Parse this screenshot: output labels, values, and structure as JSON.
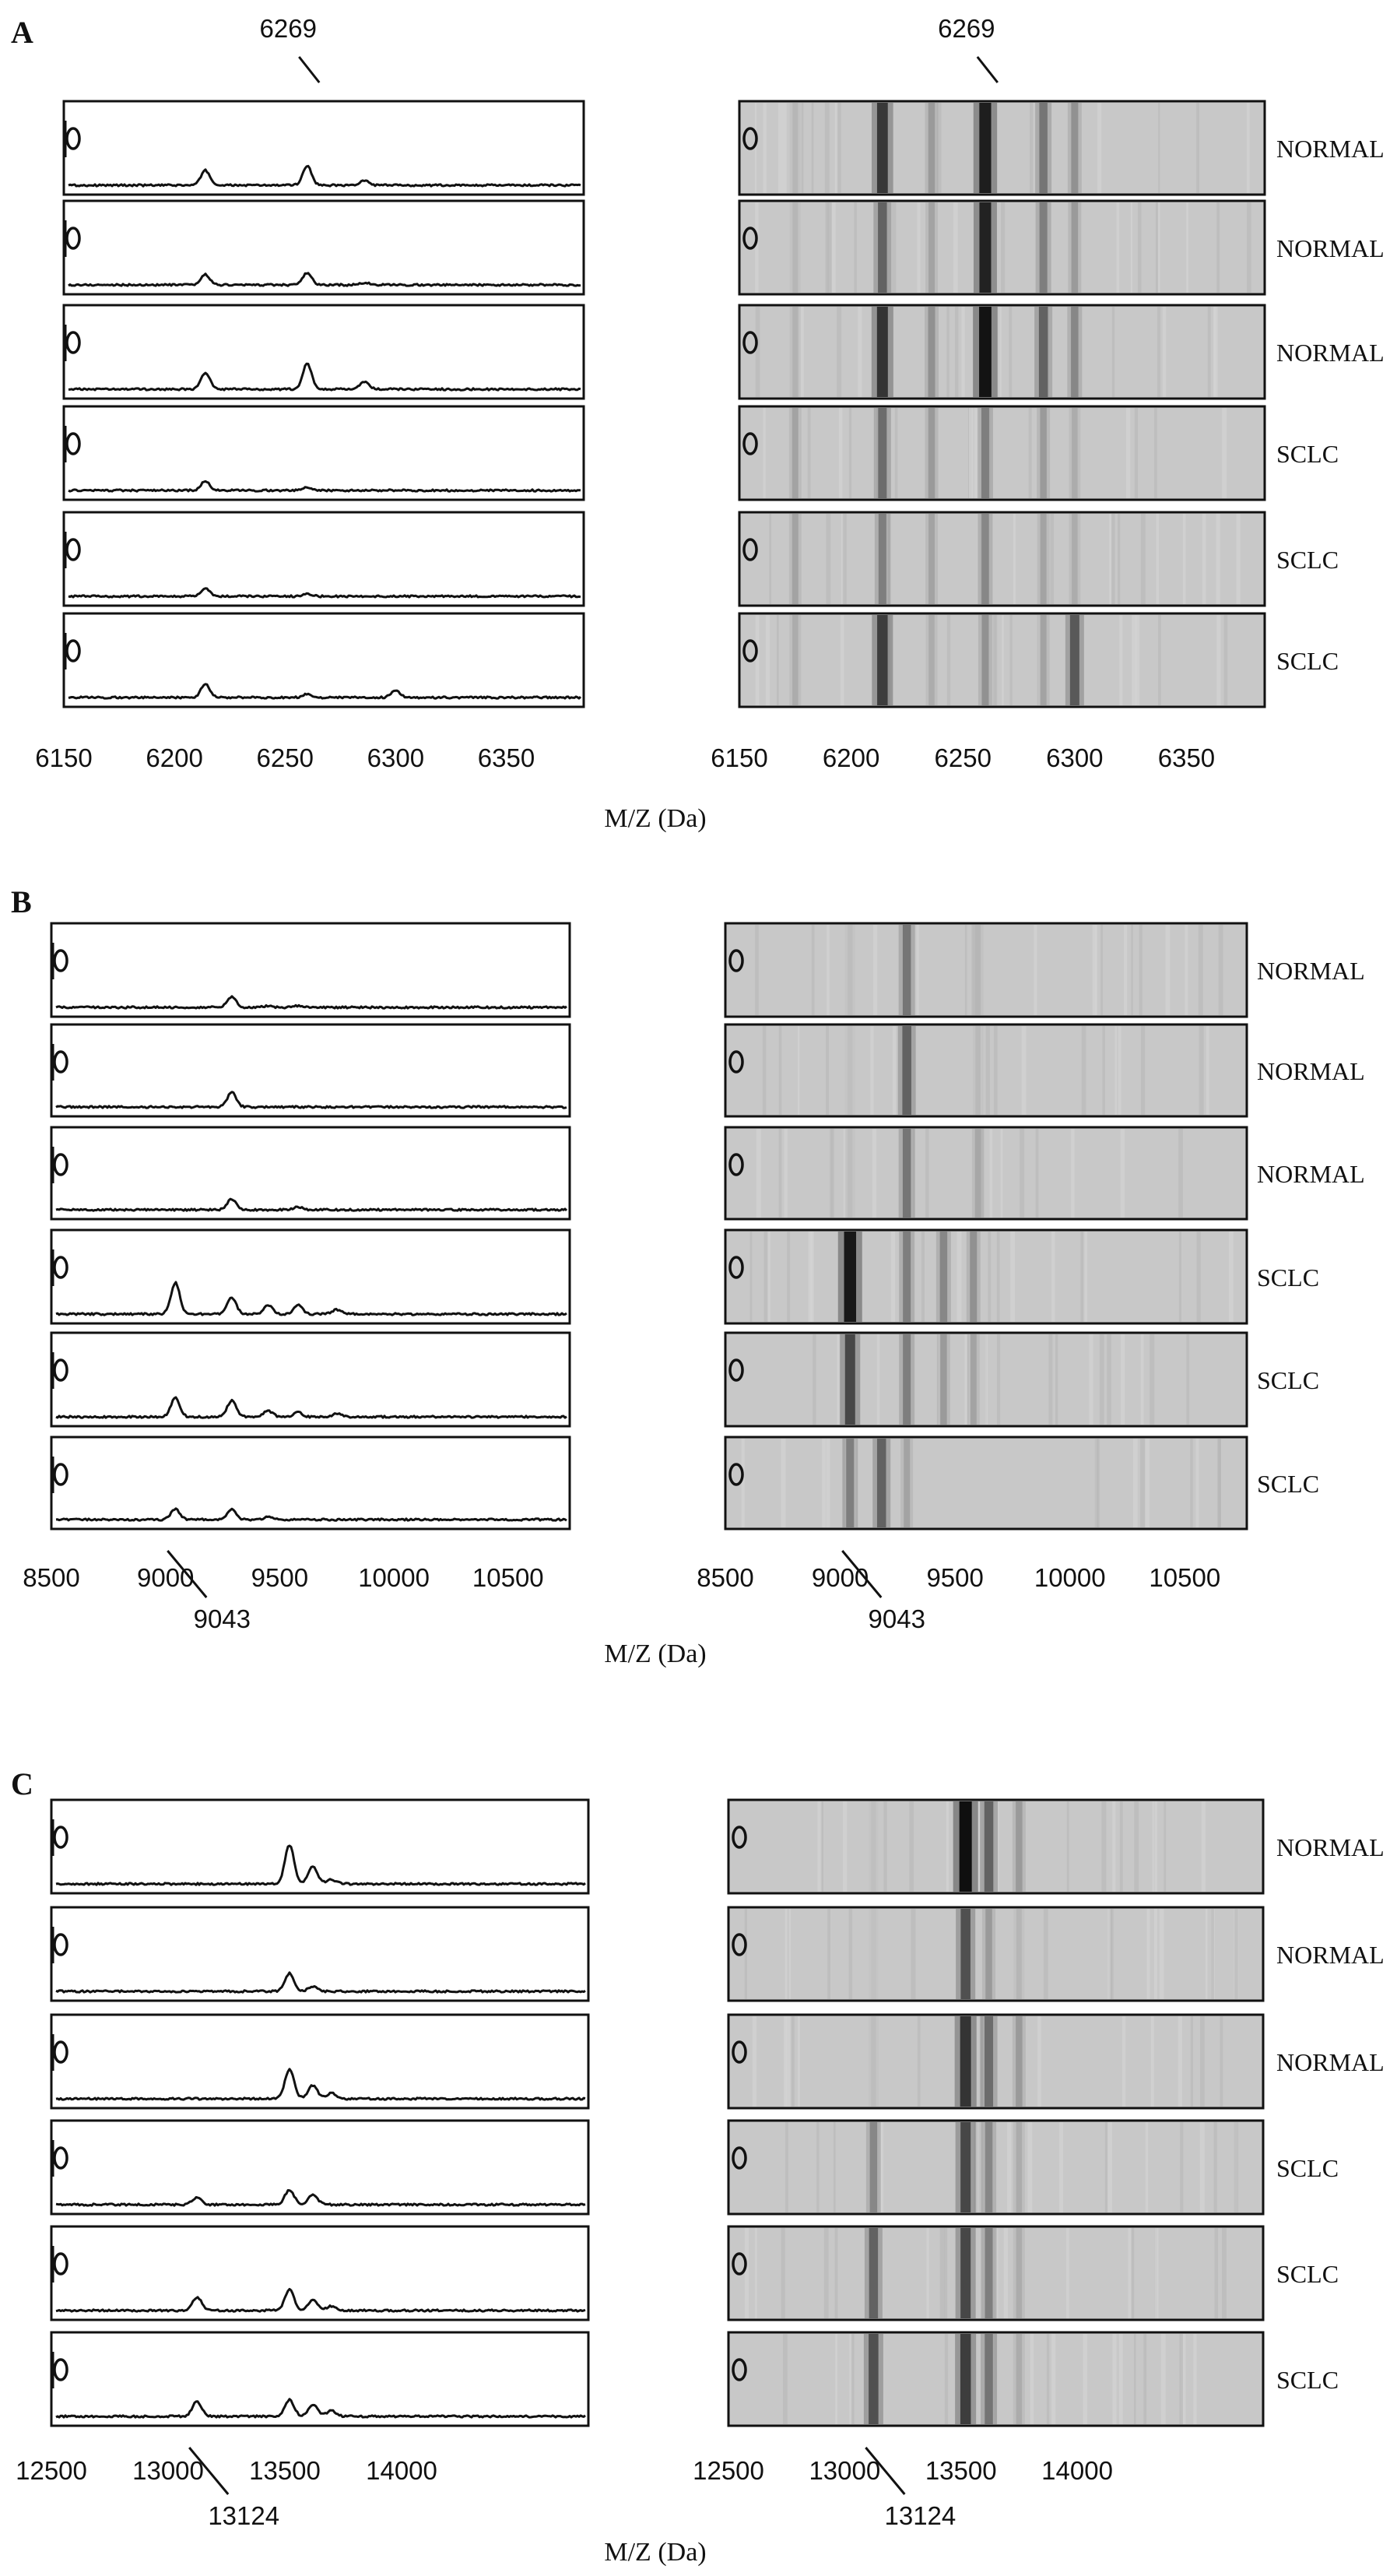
{
  "panels": [
    {
      "letter": "A",
      "axis_label": "M/Z (Da)",
      "ticks": [
        "6150",
        "6200",
        "6250",
        "6300",
        "6350"
      ],
      "marker": "6269",
      "rows": [
        "NORMAL",
        "NORMAL",
        "NORMAL",
        "SCLC",
        "SCLC",
        "SCLC"
      ]
    },
    {
      "letter": "B",
      "axis_label": "M/Z (Da)",
      "ticks": [
        "8500",
        "9000",
        "9500",
        "10000",
        "10500"
      ],
      "marker": "9043",
      "rows": [
        "NORMAL",
        "NORMAL",
        "NORMAL",
        "SCLC",
        "SCLC",
        "SCLC"
      ]
    },
    {
      "letter": "C",
      "axis_label": "M/Z (Da)",
      "ticks": [
        "12500",
        "13000",
        "13500",
        "14000"
      ],
      "marker": "13124",
      "rows": [
        "NORMAL",
        "NORMAL",
        "NORMAL",
        "SCLC",
        "SCLC",
        "SCLC"
      ]
    }
  ],
  "row_icon_text": "0",
  "chart_data": [
    {
      "type": "line",
      "panel": "A",
      "xlabel": "M/Z (Da)",
      "xlim": [
        6150,
        6385
      ],
      "xticks": [
        6150,
        6200,
        6250,
        6300,
        6350
      ],
      "marker_mz": 6269,
      "marker_label": "6269",
      "peak_positions": [
        6214,
        6260,
        6286,
        6300
      ],
      "series": [
        {
          "name": "NORMAL",
          "peaks": [
            0.2,
            0.26,
            0.06,
            0.0
          ]
        },
        {
          "name": "NORMAL",
          "peaks": [
            0.14,
            0.16,
            0.03,
            0.0
          ]
        },
        {
          "name": "NORMAL",
          "peaks": [
            0.22,
            0.34,
            0.1,
            0.0
          ]
        },
        {
          "name": "SCLC",
          "peaks": [
            0.12,
            0.04,
            0.0,
            0.0
          ]
        },
        {
          "name": "SCLC",
          "peaks": [
            0.1,
            0.04,
            0.0,
            0.0
          ]
        },
        {
          "name": "SCLC",
          "peaks": [
            0.18,
            0.05,
            0.0,
            0.1
          ]
        }
      ],
      "gel_bands": [
        [
          [
            6175,
            0.1
          ],
          [
            6214,
            0.78
          ],
          [
            6236,
            0.25
          ],
          [
            6260,
            0.92
          ],
          [
            6286,
            0.45
          ],
          [
            6300,
            0.3
          ]
        ],
        [
          [
            6175,
            0.1
          ],
          [
            6214,
            0.55
          ],
          [
            6236,
            0.2
          ],
          [
            6260,
            0.9
          ],
          [
            6286,
            0.4
          ],
          [
            6300,
            0.25
          ]
        ],
        [
          [
            6175,
            0.12
          ],
          [
            6214,
            0.8
          ],
          [
            6236,
            0.3
          ],
          [
            6260,
            0.98
          ],
          [
            6286,
            0.55
          ],
          [
            6300,
            0.35
          ]
        ],
        [
          [
            6175,
            0.2
          ],
          [
            6214,
            0.5
          ],
          [
            6236,
            0.25
          ],
          [
            6260,
            0.4
          ],
          [
            6286,
            0.25
          ],
          [
            6300,
            0.15
          ]
        ],
        [
          [
            6175,
            0.2
          ],
          [
            6214,
            0.4
          ],
          [
            6236,
            0.2
          ],
          [
            6260,
            0.35
          ],
          [
            6286,
            0.2
          ],
          [
            6300,
            0.15
          ]
        ],
        [
          [
            6175,
            0.15
          ],
          [
            6214,
            0.75
          ],
          [
            6236,
            0.15
          ],
          [
            6260,
            0.3
          ],
          [
            6286,
            0.2
          ],
          [
            6300,
            0.6
          ]
        ]
      ]
    },
    {
      "type": "line",
      "panel": "B",
      "xlabel": "M/Z (Da)",
      "xlim": [
        8500,
        10770
      ],
      "xticks": [
        8500,
        9000,
        9500,
        10000,
        10500
      ],
      "marker_mz": 9043,
      "marker_label": "9043",
      "peak_positions": [
        9043,
        9290,
        9450,
        9580,
        9750
      ],
      "series": [
        {
          "name": "NORMAL",
          "peaks": [
            0.0,
            0.14,
            0.02,
            0.02,
            0.0
          ]
        },
        {
          "name": "NORMAL",
          "peaks": [
            0.0,
            0.2,
            0.0,
            0.0,
            0.0
          ]
        },
        {
          "name": "NORMAL",
          "peaks": [
            0.0,
            0.15,
            0.0,
            0.04,
            0.0
          ]
        },
        {
          "name": "SCLC",
          "peaks": [
            0.42,
            0.22,
            0.12,
            0.12,
            0.06
          ]
        },
        {
          "name": "SCLC",
          "peaks": [
            0.25,
            0.22,
            0.08,
            0.06,
            0.04
          ]
        },
        {
          "name": "SCLC",
          "peaks": [
            0.14,
            0.14,
            0.04,
            0.0,
            0.0
          ]
        }
      ],
      "gel_bands": [
        [
          [
            9043,
            0.06
          ],
          [
            9290,
            0.45
          ],
          [
            9600,
            0.1
          ]
        ],
        [
          [
            9043,
            0.05
          ],
          [
            9290,
            0.55
          ],
          [
            9600,
            0.08
          ]
        ],
        [
          [
            9043,
            0.06
          ],
          [
            9290,
            0.45
          ],
          [
            9600,
            0.18
          ]
        ],
        [
          [
            9043,
            0.95
          ],
          [
            9290,
            0.4
          ],
          [
            9450,
            0.35
          ],
          [
            9580,
            0.3
          ]
        ],
        [
          [
            9043,
            0.7
          ],
          [
            9290,
            0.4
          ],
          [
            9450,
            0.25
          ],
          [
            9580,
            0.2
          ]
        ],
        [
          [
            9043,
            0.4
          ],
          [
            9180,
            0.55
          ],
          [
            9290,
            0.2
          ]
        ]
      ]
    },
    {
      "type": "line",
      "panel": "C",
      "xlabel": "M/Z (Da)",
      "xlim": [
        12500,
        14800
      ],
      "xticks": [
        12500,
        13000,
        13500,
        14000
      ],
      "marker_mz": 13124,
      "marker_label": "13124",
      "peak_positions": [
        13124,
        13520,
        13620,
        13700
      ],
      "series": [
        {
          "name": "NORMAL",
          "peaks": [
            0.0,
            0.52,
            0.24,
            0.06
          ]
        },
        {
          "name": "NORMAL",
          "peaks": [
            0.0,
            0.24,
            0.06,
            0.0
          ]
        },
        {
          "name": "NORMAL",
          "peaks": [
            0.0,
            0.4,
            0.18,
            0.08
          ]
        },
        {
          "name": "SCLC",
          "peaks": [
            0.1,
            0.2,
            0.14,
            0.0
          ]
        },
        {
          "name": "SCLC",
          "peaks": [
            0.18,
            0.28,
            0.14,
            0.06
          ]
        },
        {
          "name": "SCLC",
          "peaks": [
            0.2,
            0.22,
            0.16,
            0.08
          ]
        }
      ],
      "gel_bands": [
        [
          [
            13124,
            0.05
          ],
          [
            13520,
            1.0
          ],
          [
            13620,
            0.55
          ],
          [
            13750,
            0.25
          ]
        ],
        [
          [
            13124,
            0.04
          ],
          [
            13520,
            0.65
          ],
          [
            13620,
            0.25
          ],
          [
            13750,
            0.1
          ]
        ],
        [
          [
            13124,
            0.06
          ],
          [
            13520,
            0.8
          ],
          [
            13620,
            0.5
          ],
          [
            13750,
            0.25
          ]
        ],
        [
          [
            13124,
            0.35
          ],
          [
            13520,
            0.7
          ],
          [
            13620,
            0.35
          ],
          [
            13750,
            0.15
          ]
        ],
        [
          [
            13124,
            0.55
          ],
          [
            13520,
            0.7
          ],
          [
            13620,
            0.4
          ],
          [
            13750,
            0.15
          ]
        ],
        [
          [
            13124,
            0.65
          ],
          [
            13520,
            0.75
          ],
          [
            13620,
            0.45
          ],
          [
            13750,
            0.15
          ]
        ]
      ]
    }
  ]
}
